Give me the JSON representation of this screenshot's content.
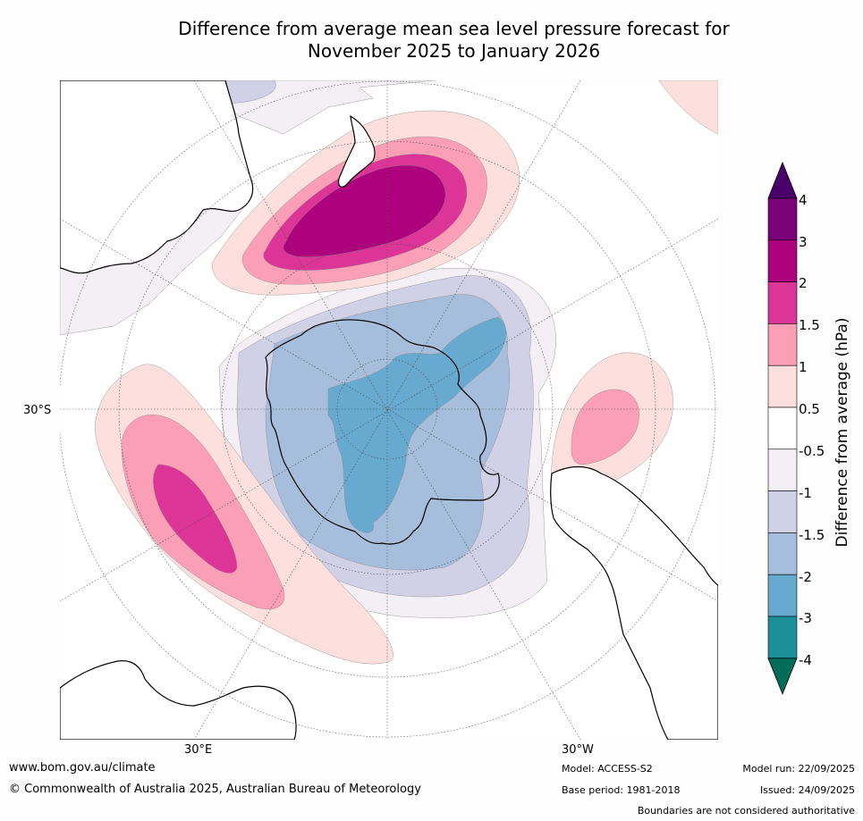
{
  "title_line1": "Difference from average mean sea level pressure forecast for",
  "title_line2": "November 2025 to January 2026",
  "map": {
    "projection": "south-polar-stereographic",
    "labels": {
      "lat30s": "30°S",
      "lon30e": "30°E",
      "lon30w": "30°W"
    },
    "colors": {
      "land": "#ffffff",
      "coastline": "#000000",
      "gridline": "#555555",
      "neg0_5": "#f4eef5",
      "neg1": "#d0d1e6",
      "neg1_5": "#a6bddb",
      "neg2": "#67a9cf",
      "pos0_5": "#fde0dd",
      "pos1": "#fa9fb5",
      "pos1_5": "#dd3497",
      "pos2": "#ae017e"
    }
  },
  "colorbar": {
    "title": "Difference from average (hPa)",
    "ticks": [
      "4",
      "3",
      "2",
      "1.5",
      "1",
      "0.5",
      "-0.5",
      "-1",
      "-1.5",
      "-2",
      "-3",
      "-4"
    ],
    "bins": [
      {
        "color": "#7a0177"
      },
      {
        "color": "#ae017e"
      },
      {
        "color": "#dd3497"
      },
      {
        "color": "#fa9fb5"
      },
      {
        "color": "#fde0dd"
      },
      {
        "color": "#ffffff"
      },
      {
        "color": "#f4eef5"
      },
      {
        "color": "#d0d1e6"
      },
      {
        "color": "#a6bddb"
      },
      {
        "color": "#67a9cf"
      },
      {
        "color": "#1c9099"
      }
    ],
    "top_extend_color": "#49006a",
    "bottom_extend_color": "#016c59"
  },
  "footer": {
    "website": "www.bom.gov.au/climate",
    "copyright": "© Commonwealth of Australia 2025, Australian Bureau of Meteorology",
    "model": "Model: ACCESS-S2",
    "base_period": "Base period: 1981-2018",
    "model_run": "Model run: 22/09/2025",
    "issued": "Issued: 24/09/2025",
    "disclaimer": "Boundaries are not considered authoritative"
  }
}
